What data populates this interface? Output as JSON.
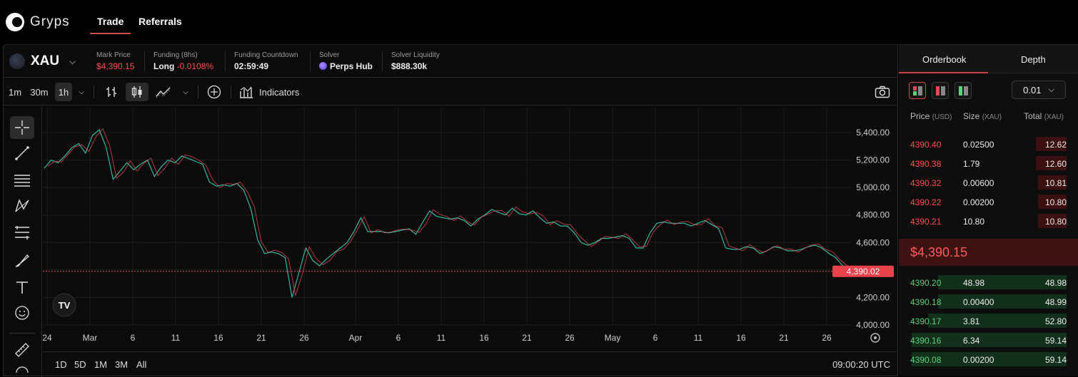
{
  "app": {
    "name": "Gryps",
    "nav": [
      "Trade",
      "Referrals"
    ]
  },
  "asset": {
    "symbol": "XAU"
  },
  "stats": [
    {
      "label": "Mark Price",
      "value": "$4,390.15",
      "color": "#ff4d4d"
    },
    {
      "label": "Funding (8hs)",
      "value": "Long",
      "value2": "-0.0108%"
    },
    {
      "label": "Funding Countdown",
      "value": "02:59:49"
    },
    {
      "label": "Solver",
      "value": "Perps Hub"
    },
    {
      "label": "Solver Liquidity",
      "value": "$888.30k"
    }
  ],
  "toolbar": {
    "intervals": [
      "1m",
      "30m",
      "1h"
    ],
    "active_interval": "1h",
    "indicators": "Indicators"
  },
  "chart_data": {
    "type": "line",
    "price_ticks": [
      "5,400.00",
      "5,200.00",
      "5,000.00",
      "4,800.00",
      "4,600.00",
      "4,400.00",
      "4,200.00",
      "4,000.00"
    ],
    "ylim": [
      4000,
      5500
    ],
    "x_ticks": [
      "24",
      "Mar",
      "6",
      "11",
      "16",
      "21",
      "26",
      "Apr",
      "6",
      "11",
      "16",
      "21",
      "26",
      "May",
      "6",
      "11",
      "16",
      "21",
      "26"
    ],
    "last_price_label": "4,390.02",
    "last_price": 4390.02,
    "series": [
      {
        "values": [
          5140,
          5200,
          5180,
          5230,
          5290,
          5320,
          5250,
          5380,
          5420,
          5290,
          5060,
          5120,
          5180,
          5130,
          5170,
          5200,
          5080,
          5150,
          5200,
          5180,
          5230,
          5210,
          5190,
          5170,
          5040,
          5010,
          5020,
          5010,
          5030,
          4980,
          4850,
          4620,
          4520,
          4530,
          4520,
          4490,
          4200,
          4380,
          4560,
          4470,
          4430,
          4480,
          4520,
          4560,
          4600,
          4680,
          4780,
          4680,
          4680,
          4680,
          4670,
          4680,
          4690,
          4700,
          4660,
          4750,
          4830,
          4790,
          4780,
          4770,
          4780,
          4760,
          4720,
          4770,
          4800,
          4840,
          4820,
          4800,
          4850,
          4810,
          4800,
          4830,
          4780,
          4740,
          4750,
          4720,
          4720,
          4670,
          4600,
          4580,
          4600,
          4630,
          4630,
          4640,
          4650,
          4630,
          4560,
          4560,
          4670,
          4740,
          4750,
          4740,
          4740,
          4740,
          4720,
          4740,
          4760,
          4730,
          4700,
          4560,
          4550,
          4550,
          4570,
          4560,
          4520,
          4540,
          4570,
          4560,
          4540,
          4540,
          4550,
          4570,
          4580,
          4560,
          4520,
          4490,
          4430,
          4390
        ]
      }
    ]
  },
  "ranges": [
    "1D",
    "5D",
    "1M",
    "3M",
    "All"
  ],
  "clock": "09:00:20 UTC",
  "orderbook": {
    "tabs": [
      "Orderbook",
      "Depth"
    ],
    "tick": "0.01",
    "headers": {
      "price": "Price",
      "price_unit": "(USD)",
      "size": "Size",
      "size_unit": "(XAU)",
      "total": "Total",
      "total_unit": "(XAU)"
    },
    "asks": [
      {
        "price": "4390.40",
        "size": "0.02500",
        "total": "12.62"
      },
      {
        "price": "4390.38",
        "size": "1.79",
        "total": "12.60"
      },
      {
        "price": "4390.32",
        "size": "0.00600",
        "total": "10.81"
      },
      {
        "price": "4390.22",
        "size": "0.00200",
        "total": "10.80"
      },
      {
        "price": "4390.21",
        "size": "10.80",
        "total": "10.80"
      }
    ],
    "mid": "$4,390.15",
    "bids": [
      {
        "price": "4390.20",
        "size": "48.98",
        "total": "48.98"
      },
      {
        "price": "4390.18",
        "size": "0.00400",
        "total": "48.99"
      },
      {
        "price": "4390.17",
        "size": "3.81",
        "total": "52.80"
      },
      {
        "price": "4390.16",
        "size": "6.34",
        "total": "59.14"
      },
      {
        "price": "4390.08",
        "size": "0.00200",
        "total": "59.14"
      }
    ]
  }
}
